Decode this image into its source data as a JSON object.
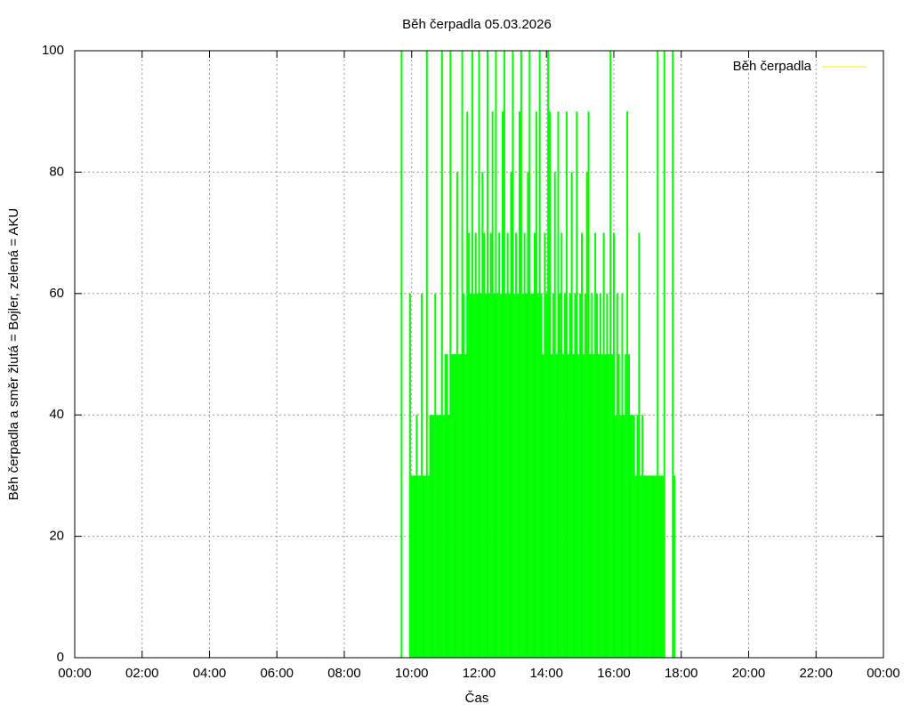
{
  "chart_data": {
    "type": "impulses",
    "title": "Běh čerpadla 05.03.2026",
    "x_label": "Čas",
    "y_label": "Běh čerpadla a směr žlutá = Bojler, zelená = AKU",
    "xlim": [
      0,
      24
    ],
    "xticks": [
      {
        "value": 0,
        "label": "00:00"
      },
      {
        "value": 2,
        "label": "02:00"
      },
      {
        "value": 4,
        "label": "04:00"
      },
      {
        "value": 6,
        "label": "06:00"
      },
      {
        "value": 8,
        "label": "08:00"
      },
      {
        "value": 10,
        "label": "10:00"
      },
      {
        "value": 12,
        "label": "12:00"
      },
      {
        "value": 14,
        "label": "14:00"
      },
      {
        "value": 16,
        "label": "16:00"
      },
      {
        "value": 18,
        "label": "18:00"
      },
      {
        "value": 20,
        "label": "20:00"
      },
      {
        "value": 22,
        "label": "22:00"
      },
      {
        "value": 24,
        "label": "00:00"
      }
    ],
    "ylim": [
      0,
      100
    ],
    "yticks": [
      0,
      20,
      40,
      60,
      80,
      100
    ],
    "grid": true,
    "legend": "top-right",
    "series": [
      {
        "name": "Běh čerpadla",
        "color": "#00ff00",
        "legend_color": "#ffee00",
        "x": [
          9.7,
          9.95,
          10.0,
          10.05,
          10.1,
          10.15,
          10.2,
          10.25,
          10.3,
          10.35,
          10.4,
          10.45,
          10.5,
          10.55,
          10.6,
          10.65,
          10.7,
          10.75,
          10.8,
          10.85,
          10.9,
          10.95,
          11.0,
          11.05,
          11.1,
          11.15,
          11.2,
          11.25,
          11.3,
          11.35,
          11.4,
          11.45,
          11.5,
          11.55,
          11.6,
          11.65,
          11.7,
          11.75,
          11.8,
          11.85,
          11.9,
          11.95,
          12.0,
          12.05,
          12.1,
          12.15,
          12.2,
          12.25,
          12.3,
          12.35,
          12.4,
          12.45,
          12.5,
          12.55,
          12.6,
          12.65,
          12.7,
          12.75,
          12.8,
          12.85,
          12.9,
          12.95,
          13.0,
          13.05,
          13.1,
          13.15,
          13.2,
          13.25,
          13.3,
          13.35,
          13.4,
          13.45,
          13.5,
          13.55,
          13.6,
          13.65,
          13.7,
          13.75,
          13.8,
          13.85,
          13.9,
          13.95,
          14.0,
          14.05,
          14.1,
          14.15,
          14.2,
          14.25,
          14.3,
          14.35,
          14.4,
          14.45,
          14.5,
          14.55,
          14.6,
          14.65,
          14.7,
          14.75,
          14.8,
          14.85,
          14.9,
          14.95,
          15.0,
          15.05,
          15.1,
          15.15,
          15.2,
          15.25,
          15.3,
          15.35,
          15.4,
          15.45,
          15.5,
          15.55,
          15.6,
          15.65,
          15.7,
          15.75,
          15.8,
          15.85,
          15.9,
          15.95,
          16.0,
          16.05,
          16.1,
          16.15,
          16.2,
          16.25,
          16.3,
          16.35,
          16.4,
          16.45,
          16.5,
          16.55,
          16.6,
          16.65,
          16.7,
          16.75,
          16.8,
          16.85,
          16.9,
          16.95,
          17.0,
          17.05,
          17.1,
          17.15,
          17.2,
          17.25,
          17.3,
          17.35,
          17.4,
          17.45,
          17.5,
          17.75,
          17.8
        ],
        "values": [
          100,
          60,
          30,
          30,
          30,
          40,
          30,
          30,
          60,
          30,
          30,
          100,
          30,
          40,
          40,
          40,
          60,
          40,
          40,
          40,
          100,
          40,
          50,
          50,
          40,
          100,
          50,
          50,
          50,
          80,
          50,
          50,
          100,
          60,
          50,
          90,
          70,
          60,
          100,
          60,
          70,
          60,
          100,
          60,
          80,
          70,
          60,
          100,
          60,
          70,
          90,
          60,
          100,
          60,
          70,
          60,
          90,
          100,
          60,
          70,
          60,
          80,
          100,
          60,
          70,
          60,
          90,
          100,
          60,
          70,
          60,
          80,
          100,
          60,
          60,
          70,
          90,
          60,
          100,
          60,
          50,
          70,
          60,
          100,
          90,
          50,
          60,
          80,
          50,
          90,
          60,
          70,
          50,
          60,
          90,
          50,
          60,
          80,
          50,
          60,
          90,
          50,
          60,
          70,
          50,
          60,
          80,
          90,
          50,
          60,
          50,
          70,
          60,
          50,
          60,
          50,
          70,
          50,
          60,
          50,
          100,
          50,
          70,
          40,
          60,
          50,
          40,
          60,
          40,
          50,
          90,
          50,
          40,
          40,
          40,
          30,
          40,
          70,
          30,
          40,
          30,
          30,
          30,
          30,
          30,
          30,
          30,
          30,
          100,
          30,
          30,
          30,
          100,
          100,
          30
        ]
      }
    ]
  }
}
